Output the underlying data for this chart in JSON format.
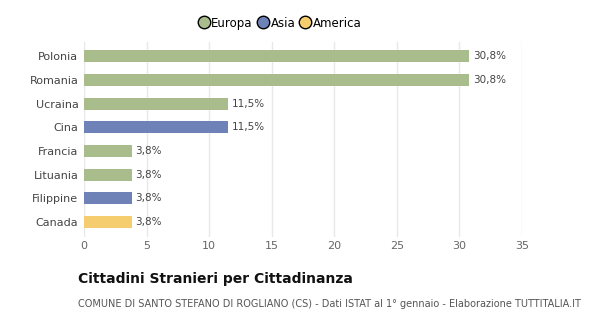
{
  "categories": [
    "Canada",
    "Filippine",
    "Lituania",
    "Francia",
    "Cina",
    "Ucraina",
    "Romania",
    "Polonia"
  ],
  "values": [
    3.8,
    3.8,
    3.8,
    3.8,
    11.5,
    11.5,
    30.8,
    30.8
  ],
  "labels": [
    "3,8%",
    "3,8%",
    "3,8%",
    "3,8%",
    "11,5%",
    "11,5%",
    "30,8%",
    "30,8%"
  ],
  "colors": [
    "#f5cc6e",
    "#6e82b8",
    "#a8bc8c",
    "#a8bc8c",
    "#6e82b8",
    "#a8bc8c",
    "#a8bc8c",
    "#a8bc8c"
  ],
  "legend_labels": [
    "Europa",
    "Asia",
    "America"
  ],
  "legend_colors": [
    "#a8bc8c",
    "#6e82b8",
    "#f5cc6e"
  ],
  "xlim": [
    0,
    35
  ],
  "xticks": [
    0,
    5,
    10,
    15,
    20,
    25,
    30,
    35
  ],
  "title": "Cittadini Stranieri per Cittadinanza",
  "subtitle": "COMUNE DI SANTO STEFANO DI ROGLIANO (CS) - Dati ISTAT al 1° gennaio - Elaborazione TUTTITALIA.IT",
  "title_fontsize": 10,
  "subtitle_fontsize": 7,
  "label_fontsize": 7.5,
  "tick_fontsize": 8,
  "legend_fontsize": 8.5,
  "bar_height": 0.5,
  "background_color": "#ffffff",
  "grid_color": "#e8e8e8",
  "axes_bg": "#ffffff"
}
